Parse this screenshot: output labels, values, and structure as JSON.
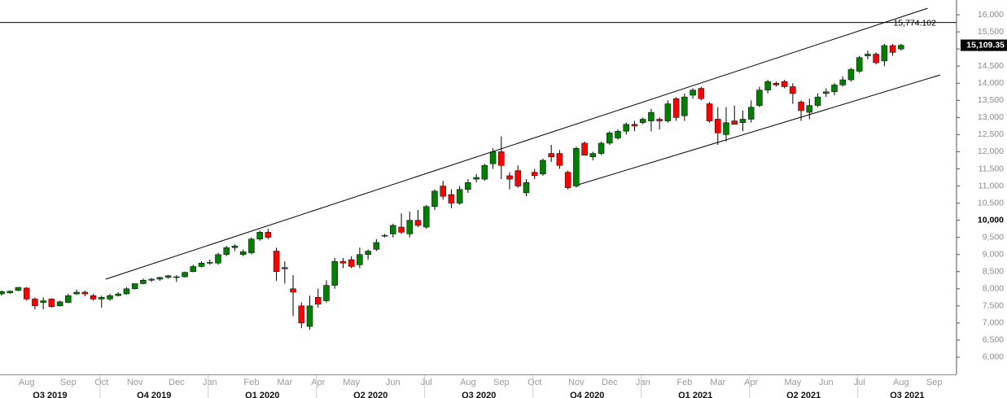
{
  "chart_data": {
    "type": "candlestick",
    "categories": [
      null,
      null,
      null,
      "Aug",
      null,
      null,
      null,
      null,
      "Sep",
      null,
      null,
      null,
      "Oct",
      null,
      null,
      null,
      "Nov",
      null,
      null,
      null,
      null,
      "Dec",
      null,
      null,
      null,
      "Jan",
      null,
      null,
      null,
      null,
      "Feb",
      null,
      null,
      null,
      "Mar",
      null,
      null,
      null,
      "Apr",
      null,
      null,
      null,
      "May",
      null,
      null,
      null,
      null,
      "Jun",
      null,
      null,
      null,
      "Jul",
      null,
      null,
      null,
      null,
      "Aug",
      null,
      null,
      null,
      "Sep",
      null,
      null,
      null,
      "Oct",
      null,
      null,
      null,
      null,
      "Nov",
      null,
      null,
      null,
      "Dec",
      null,
      null,
      null,
      "Jan",
      null,
      null,
      null,
      null,
      "Feb",
      null,
      null,
      null,
      "Mar",
      null,
      null,
      null,
      "Apr",
      null,
      null,
      null,
      null,
      "May",
      null,
      null,
      null,
      "Jun",
      null,
      null,
      null,
      "Jul",
      null,
      null,
      null,
      null,
      "Aug",
      null,
      null,
      null,
      "Sep",
      null,
      null
    ],
    "quarters": [
      "Q3 2019",
      "Q4 2019",
      "Q1 2020",
      "Q2 2020",
      "Q3 2020",
      "Q4 2020",
      "Q1 2021",
      "Q2 2021",
      "Q3 2021"
    ],
    "open": [
      7850,
      7880,
      7950,
      8020,
      7700,
      7600,
      7700,
      7500,
      7600,
      7850,
      7900,
      7800,
      7700,
      7700,
      7800,
      7850,
      8000,
      8150,
      8250,
      8280,
      8330,
      8350,
      8350,
      8500,
      8650,
      8750,
      8750,
      9000,
      9200,
      9000,
      9050,
      9450,
      9650,
      9100,
      8620,
      8000,
      7500,
      6900,
      7750,
      7650,
      8100,
      8800,
      8850,
      8700,
      9000,
      9150,
      9550,
      9600,
      9800,
      9600,
      10000,
      9800,
      10400,
      11000,
      10750,
      10500,
      10900,
      11200,
      11200,
      11650,
      12000,
      11300,
      11450,
      10800,
      11400,
      11350,
      11950,
      11950,
      11400,
      11000,
      12250,
      11850,
      11950,
      12250,
      12400,
      12600,
      12800,
      12850,
      12900,
      12950,
      12900,
      13550,
      13050,
      13650,
      13850,
      13400,
      12950,
      12500,
      12900,
      12850,
      12950,
      13350,
      13800,
      14000,
      14050,
      13900,
      13450,
      13150,
      13350,
      13700,
      13750,
      13950,
      14100,
      14350,
      14800,
      14850,
      14650,
      15100,
      15000,
      null,
      null,
      null,
      null,
      null,
      null
    ],
    "high": [
      7950,
      7950,
      8050,
      8050,
      7750,
      7750,
      7720,
      7650,
      7850,
      7980,
      7950,
      7850,
      7800,
      7850,
      7900,
      8050,
      8150,
      8300,
      8320,
      8350,
      8400,
      8400,
      8500,
      8700,
      8800,
      8850,
      9050,
      9250,
      9300,
      9150,
      9500,
      9700,
      9750,
      9200,
      8800,
      8400,
      7600,
      7800,
      8000,
      8250,
      8900,
      8900,
      8950,
      9200,
      9150,
      9450,
      9600,
      9900,
      10200,
      10250,
      10300,
      10450,
      10900,
      11150,
      10900,
      11000,
      11200,
      11350,
      11650,
      12100,
      12450,
      11400,
      11600,
      11200,
      11500,
      11800,
      12200,
      12050,
      11450,
      12150,
      12300,
      12000,
      12300,
      12600,
      12650,
      12850,
      12900,
      13000,
      13250,
      13000,
      13500,
      13600,
      13700,
      13850,
      13900,
      13450,
      13300,
      13300,
      13350,
      13200,
      13500,
      13900,
      14100,
      14050,
      14100,
      14000,
      13500,
      13550,
      13700,
      13850,
      14000,
      14200,
      14450,
      14800,
      14950,
      14900,
      15150,
      15150,
      15150,
      null,
      null,
      null,
      null,
      null,
      null
    ],
    "low": [
      7800,
      7850,
      7930,
      7650,
      7400,
      7400,
      7450,
      7480,
      7580,
      7820,
      7780,
      7650,
      7450,
      7650,
      7780,
      7830,
      7980,
      8130,
      8200,
      8230,
      8290,
      8200,
      8330,
      8480,
      8620,
      8700,
      8700,
      8950,
      9100,
      8950,
      9000,
      9400,
      9450,
      8230,
      8150,
      7200,
      6850,
      6800,
      7450,
      7600,
      8000,
      8600,
      8600,
      8600,
      8850,
      9100,
      9500,
      9500,
      9600,
      9500,
      9800,
      9750,
      10300,
      10600,
      10350,
      10450,
      10800,
      11100,
      11150,
      11500,
      11200,
      10900,
      10950,
      10700,
      11200,
      11300,
      11700,
      11500,
      10900,
      10950,
      11900,
      11750,
      11900,
      12200,
      12350,
      12500,
      12600,
      12800,
      12600,
      12650,
      12850,
      12900,
      12900,
      13550,
      13500,
      12850,
      12200,
      12300,
      12800,
      12600,
      12850,
      13300,
      13700,
      13900,
      13850,
      13400,
      12900,
      12950,
      13300,
      13600,
      13650,
      13900,
      14050,
      14300,
      14700,
      14550,
      14500,
      14800,
      14950,
      null,
      null,
      null,
      null,
      null,
      null
    ],
    "close": [
      7920,
      7930,
      8040,
      7700,
      7500,
      7650,
      7480,
      7620,
      7800,
      7900,
      7850,
      7700,
      7750,
      7800,
      7850,
      8000,
      8150,
      8250,
      8280,
      8330,
      8380,
      8350,
      8480,
      8650,
      8750,
      8770,
      9000,
      9200,
      9250,
      9080,
      9450,
      9650,
      9500,
      8500,
      8580,
      7900,
      7000,
      7500,
      7550,
      8100,
      8800,
      8750,
      8650,
      9000,
      9100,
      9350,
      9560,
      9850,
      9650,
      10000,
      9850,
      10400,
      10850,
      10700,
      10500,
      10900,
      11100,
      11250,
      11600,
      12000,
      11600,
      11200,
      11000,
      11100,
      11300,
      11750,
      11850,
      11600,
      10950,
      12100,
      11900,
      11950,
      12250,
      12550,
      12600,
      12800,
      12750,
      12950,
      13150,
      12900,
      13400,
      13000,
      13600,
      13800,
      13550,
      12900,
      12550,
      12850,
      12800,
      12950,
      13300,
      13800,
      14050,
      13950,
      13900,
      13700,
      13200,
      13350,
      13600,
      13750,
      13950,
      14100,
      14400,
      14750,
      14850,
      14600,
      15100,
      14900,
      15109.35,
      null,
      null,
      null,
      null,
      null,
      null
    ],
    "up_color": "#008000",
    "down_color": "#ff0000",
    "last_price_label": "15,109.35",
    "hline": {
      "value": 15774.102,
      "label": "15,774.102"
    },
    "trendlines": [
      {
        "x": [
          12.5,
          111.2
        ],
        "y": [
          8280,
          16190
        ]
      },
      {
        "x": [
          68.9,
          112.7
        ],
        "y": [
          11012,
          14242
        ]
      }
    ],
    "ylim": [
      5500,
      16430
    ],
    "yticks": [
      {
        "value": 6000,
        "label": "6,000"
      },
      {
        "value": 6500,
        "label": "6,500"
      },
      {
        "value": 7000,
        "label": "7,000"
      },
      {
        "value": 7500,
        "label": "7,500"
      },
      {
        "value": 8000,
        "label": "8,000"
      },
      {
        "value": 8500,
        "label": "8,500"
      },
      {
        "value": 9000,
        "label": "9,000"
      },
      {
        "value": 9500,
        "label": "9,500"
      },
      {
        "value": 10000,
        "label": "10,000",
        "bold": true
      },
      {
        "value": 10500,
        "label": "10,500"
      },
      {
        "value": 11000,
        "label": "11,000"
      },
      {
        "value": 11500,
        "label": "11,500"
      },
      {
        "value": 12000,
        "label": "12,000"
      },
      {
        "value": 12500,
        "label": "12,500"
      },
      {
        "value": 13000,
        "label": "13,000"
      },
      {
        "value": 13500,
        "label": "13,500"
      },
      {
        "value": 14000,
        "label": "14,000"
      },
      {
        "value": 14500,
        "label": "14,500"
      },
      {
        "value": 15000,
        "label": "15,000"
      },
      {
        "value": 15500,
        "label": "15,500"
      },
      {
        "value": 16000,
        "label": "16,000"
      }
    ]
  }
}
